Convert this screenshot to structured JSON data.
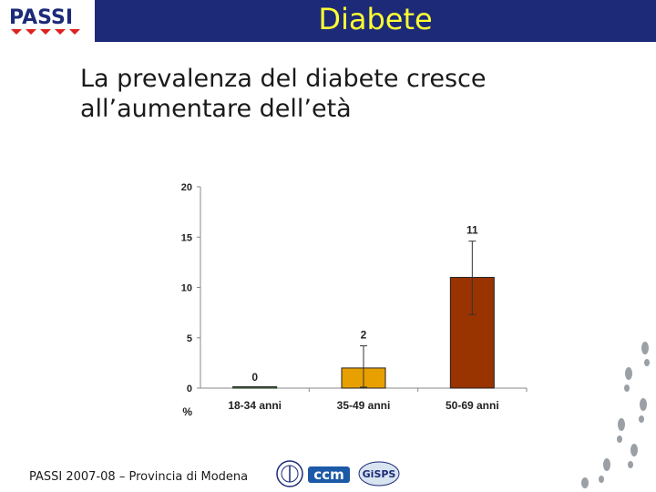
{
  "header": {
    "logo_text": "PASSI",
    "title": "Diabete"
  },
  "subtitle": "La prevalenza del diabete cresce all’aumentare dell’età",
  "chart_data": {
    "type": "bar",
    "categories": [
      "18-34 anni",
      "35-49 anni",
      "50-69 anni"
    ],
    "values": [
      0,
      2,
      11
    ],
    "data_labels": [
      "0",
      "2",
      "11"
    ],
    "error_bars": [
      [
        0,
        0
      ],
      [
        0.1,
        4.2
      ],
      [
        7.3,
        14.6
      ]
    ],
    "ylim": [
      0,
      20
    ],
    "yticks": [
      0,
      5,
      10,
      15,
      20
    ],
    "ylabel": "%",
    "xlabel": "",
    "title": "",
    "grid": false,
    "colors": [
      "#4a9a4a",
      "#e8a000",
      "#993300"
    ]
  },
  "footer": {
    "text": "PASSI 2007-08 – Provincia di Modena",
    "logos": [
      "ccm",
      "GiSPS"
    ]
  }
}
